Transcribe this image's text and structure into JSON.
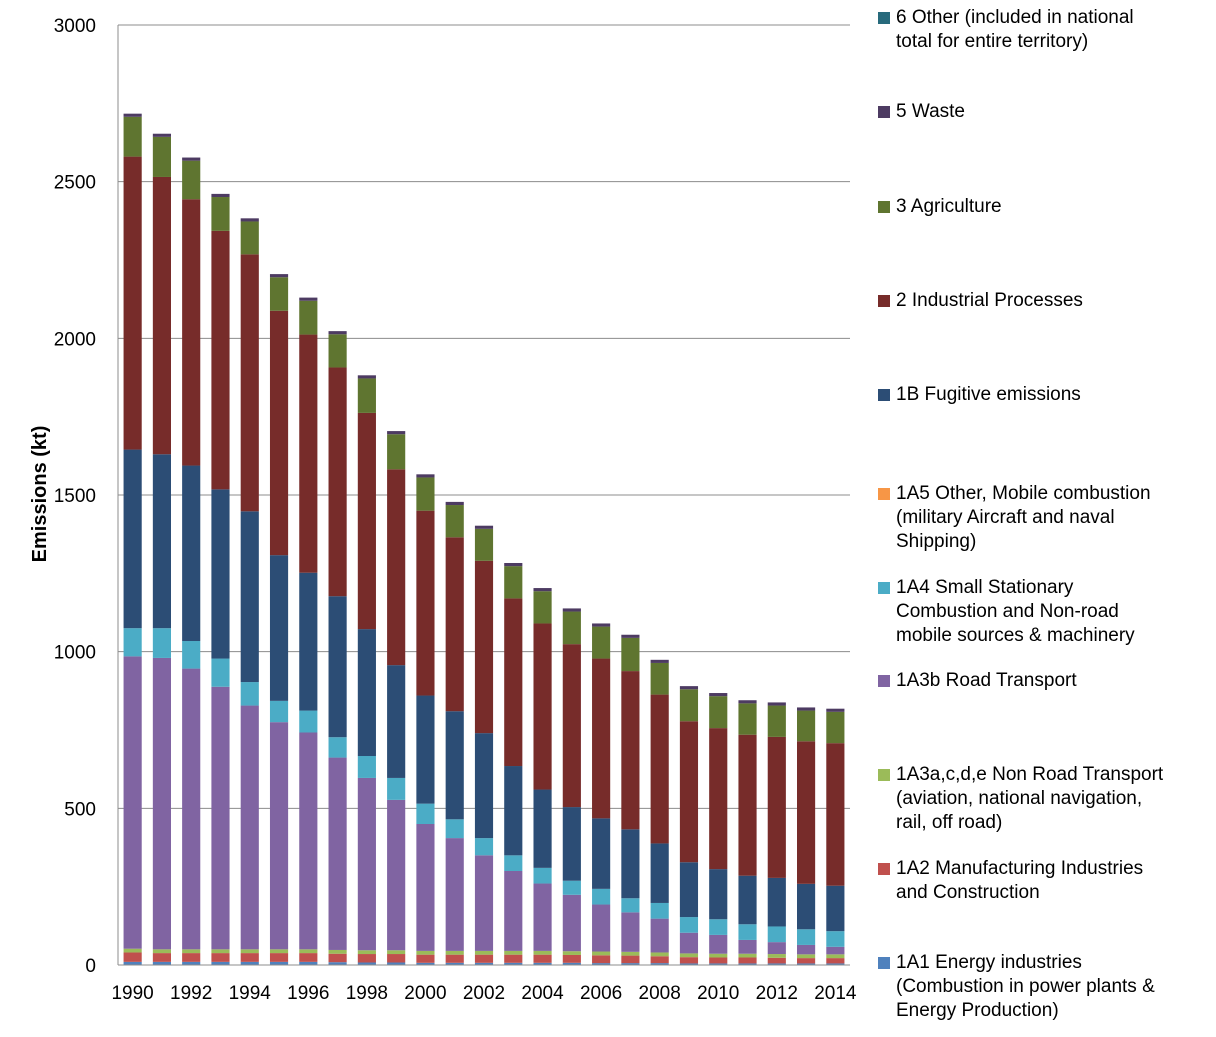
{
  "chart_data": {
    "type": "bar",
    "stacked": true,
    "title": "",
    "xlabel": "",
    "ylabel": "Emissions (kt)",
    "ylim": [
      0,
      3000
    ],
    "yticks": [
      0,
      500,
      1000,
      1500,
      2000,
      2500,
      3000
    ],
    "grid": true,
    "legend_position": "right",
    "categories": [
      "1990",
      "1991",
      "1992",
      "1993",
      "1994",
      "1995",
      "1996",
      "1997",
      "1998",
      "1999",
      "2000",
      "2001",
      "2002",
      "2003",
      "2004",
      "2005",
      "2006",
      "2007",
      "2008",
      "2009",
      "2010",
      "2011",
      "2012",
      "2013",
      "2014"
    ],
    "x_tick_labels": [
      "1990",
      "",
      "1992",
      "",
      "1994",
      "",
      "1996",
      "",
      "1998",
      "",
      "2000",
      "",
      "2002",
      "",
      "2004",
      "",
      "2006",
      "",
      "2008",
      "",
      "2010",
      "",
      "2012",
      "",
      "2014"
    ],
    "series": [
      {
        "name": "1A1 Energy industries (Combustion in power plants & Energy Production)",
        "color": "#4F81BD",
        "values": [
          10,
          10,
          10,
          10,
          10,
          10,
          10,
          9,
          8,
          8,
          7,
          7,
          7,
          7,
          7,
          7,
          6,
          6,
          6,
          5,
          5,
          5,
          5,
          5,
          5
        ]
      },
      {
        "name": "1A2 Manufacturing Industries and Construction",
        "color": "#C0504D",
        "values": [
          30,
          28,
          28,
          28,
          28,
          28,
          28,
          27,
          27,
          27,
          26,
          26,
          26,
          26,
          26,
          25,
          25,
          24,
          22,
          20,
          19,
          19,
          18,
          17,
          17
        ]
      },
      {
        "name": "1A3a,c,d,e Non Road Transport (aviation, national navigation, rail, off road)",
        "color": "#9BBB59",
        "values": [
          12,
          12,
          12,
          12,
          12,
          12,
          12,
          12,
          12,
          12,
          12,
          12,
          12,
          12,
          12,
          12,
          12,
          12,
          12,
          12,
          12,
          12,
          12,
          12,
          12
        ]
      },
      {
        "name": "1A3b Road Transport",
        "color": "#8064A2",
        "values": [
          933,
          930,
          896,
          838,
          778,
          725,
          692,
          614,
          550,
          480,
          405,
          360,
          305,
          255,
          215,
          180,
          150,
          126,
          108,
          66,
          60,
          44,
          38,
          30,
          24
        ]
      },
      {
        "name": "1A4 Small Stationary Combustion and Non-road mobile sources & machinery",
        "color": "#4BACC6",
        "values": [
          90,
          95,
          88,
          90,
          75,
          68,
          70,
          65,
          70,
          70,
          65,
          60,
          55,
          50,
          50,
          45,
          50,
          45,
          50,
          50,
          50,
          50,
          50,
          50,
          50
        ]
      },
      {
        "name": "1A5 Other, Mobile combustion (military Aircraft and naval Shipping)",
        "color": "#F79646",
        "values": [
          0,
          0,
          0,
          0,
          0,
          0,
          0,
          0,
          0,
          0,
          0,
          0,
          0,
          0,
          0,
          0,
          0,
          0,
          0,
          0,
          0,
          0,
          0,
          0,
          0
        ]
      },
      {
        "name": "1B Fugitive emissions",
        "color": "#2C4D75",
        "values": [
          570,
          555,
          560,
          540,
          545,
          465,
          440,
          450,
          405,
          360,
          345,
          345,
          335,
          285,
          250,
          235,
          225,
          220,
          190,
          175,
          160,
          155,
          155,
          145,
          145
        ]
      },
      {
        "name": "2 Industrial Processes",
        "color": "#772C2A",
        "values": [
          935,
          885,
          850,
          825,
          820,
          780,
          760,
          730,
          690,
          625,
          590,
          555,
          550,
          535,
          530,
          520,
          510,
          505,
          475,
          450,
          450,
          450,
          450,
          455,
          455
        ]
      },
      {
        "name": "3 Agriculture",
        "color": "#5F7530",
        "values": [
          127,
          128,
          123,
          108,
          105,
          107,
          108,
          106,
          110,
          112,
          106,
          103,
          102,
          103,
          103,
          104,
          102,
          106,
          101,
          102,
          102,
          100,
          100,
          98,
          100
        ]
      },
      {
        "name": "5 Waste",
        "color": "#4D3B62",
        "values": [
          10,
          10,
          10,
          10,
          10,
          10,
          10,
          10,
          10,
          10,
          10,
          10,
          10,
          10,
          10,
          10,
          10,
          10,
          10,
          10,
          10,
          10,
          10,
          10,
          10
        ]
      },
      {
        "name": "6 Other (included in national total for entire territory)",
        "color": "#276A7C",
        "values": [
          0,
          0,
          0,
          0,
          0,
          0,
          0,
          0,
          0,
          0,
          0,
          0,
          0,
          0,
          0,
          0,
          0,
          0,
          0,
          0,
          0,
          0,
          0,
          0,
          0
        ]
      }
    ],
    "legend": [
      {
        "lines": [
          "6 Other (included in national",
          "total for entire territory)"
        ],
        "color": "#276A7C"
      },
      {
        "lines": [
          "5 Waste"
        ],
        "color": "#4D3B62"
      },
      {
        "lines": [
          "3 Agriculture"
        ],
        "color": "#5F7530"
      },
      {
        "lines": [
          "2 Industrial Processes"
        ],
        "color": "#772C2A"
      },
      {
        "lines": [
          "1B Fugitive emissions"
        ],
        "color": "#2C4D75"
      },
      {
        "lines": [
          "1A5 Other, Mobile combustion",
          "(military Aircraft and naval",
          "Shipping)"
        ],
        "color": "#F79646"
      },
      {
        "lines": [
          "1A4 Small Stationary",
          "Combustion and Non-road",
          "mobile sources & machinery"
        ],
        "color": "#4BACC6"
      },
      {
        "lines": [
          "1A3b Road Transport"
        ],
        "color": "#8064A2"
      },
      {
        "lines": [
          "1A3a,c,d,e Non Road Transport",
          "(aviation, national navigation,",
          "rail, off road)"
        ],
        "color": "#9BBB59"
      },
      {
        "lines": [
          "1A2 Manufacturing Industries",
          "and Construction"
        ],
        "color": "#C0504D"
      },
      {
        "lines": [
          "1A1 Energy industries",
          "(Combustion in power plants &",
          "Energy Production)"
        ],
        "color": "#4F81BD"
      }
    ]
  }
}
